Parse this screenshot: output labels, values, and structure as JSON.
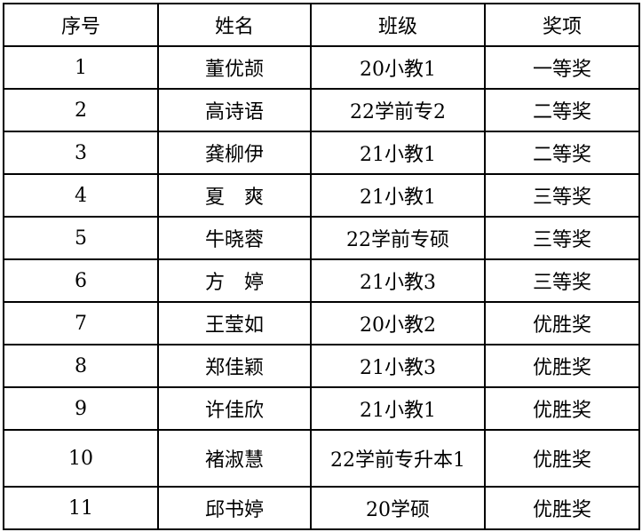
{
  "table": {
    "headers": [
      "序号",
      "姓名",
      "班级",
      "奖项"
    ],
    "rows": [
      [
        "1",
        "董优颉",
        "20小教1",
        "一等奖"
      ],
      [
        "2",
        "高诗语",
        "22学前专2",
        "二等奖"
      ],
      [
        "3",
        "龚柳伊",
        "21小教1",
        "二等奖"
      ],
      [
        "4",
        "夏　爽",
        "21小教1",
        "三等奖"
      ],
      [
        "5",
        "牛晓蓉",
        "22学前专硕",
        "三等奖"
      ],
      [
        "6",
        "方　婷",
        "21小教3",
        "三等奖"
      ],
      [
        "7",
        "王莹如",
        "20小教2",
        "优胜奖"
      ],
      [
        "8",
        "郑佳颖",
        "21小教3",
        "优胜奖"
      ],
      [
        "9",
        "许佳欣",
        "21小教1",
        "优胜奖"
      ],
      [
        "10",
        "褚淑慧",
        "22学前专升本1",
        "优胜奖"
      ],
      [
        "11",
        "邱书婷",
        "20学硕",
        "优胜奖"
      ]
    ]
  }
}
